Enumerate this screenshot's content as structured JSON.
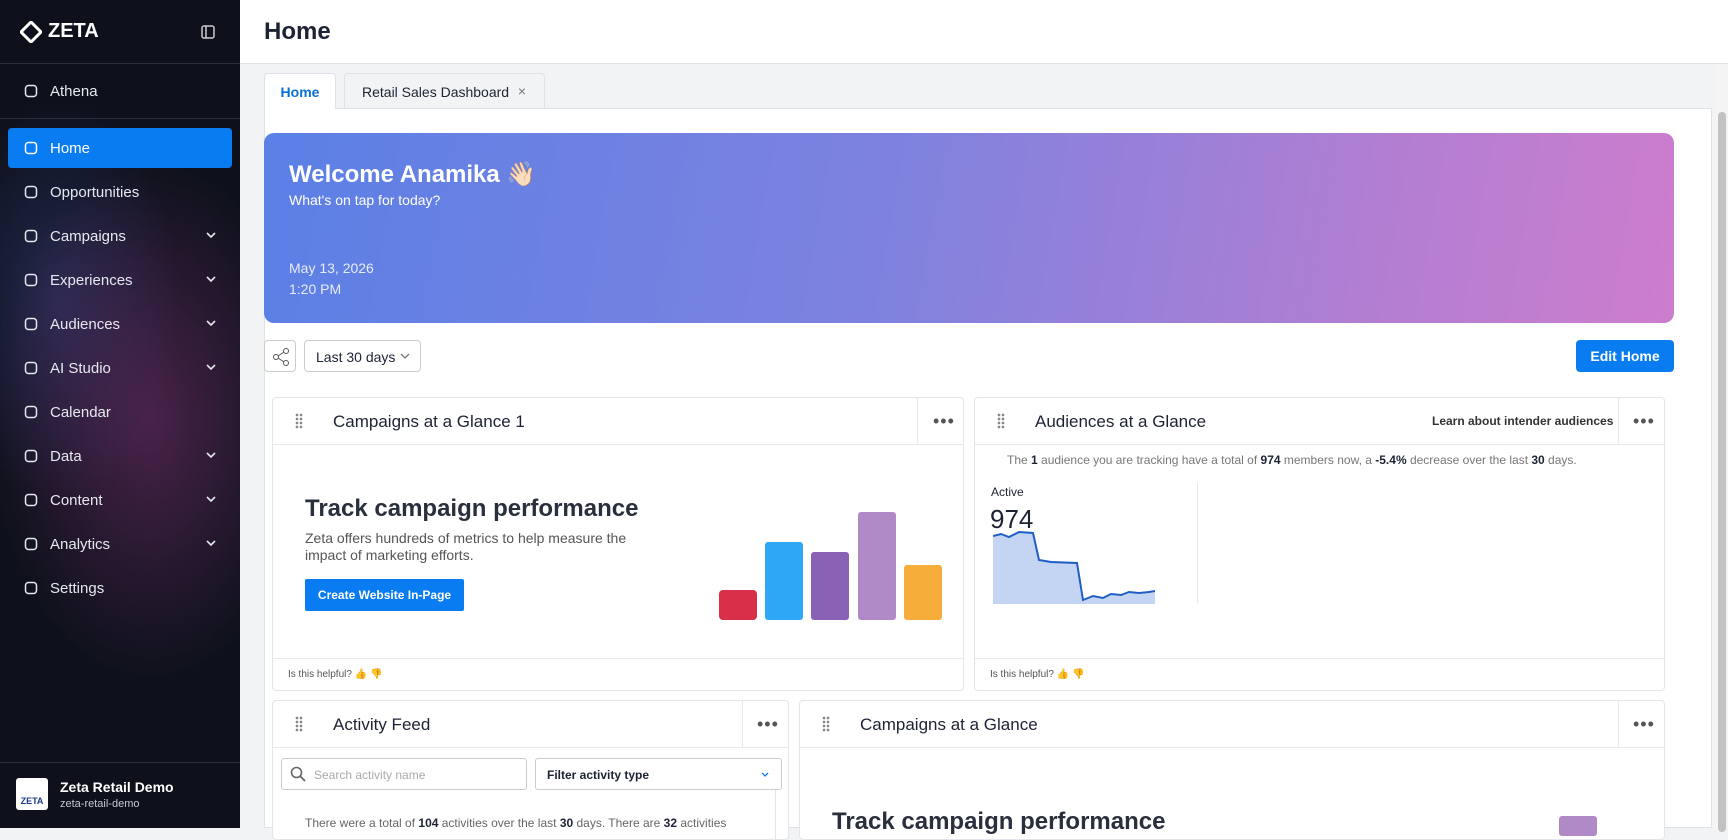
{
  "sidebar": {
    "brand": "ZETA",
    "items": [
      "Athena",
      "Home",
      "Opportunities",
      "Campaigns",
      "Experiences",
      "Audiences",
      "AI Studio",
      "Calendar",
      "Data",
      "Content",
      "Analytics",
      "Settings"
    ],
    "account": {
      "name": "Zeta Retail Demo",
      "id": "zeta-retail-demo",
      "logo": "ZETA"
    }
  },
  "header": {
    "title": "Home"
  },
  "tabs": [
    "Home",
    "Retail Sales Dashboard"
  ],
  "banner": {
    "title": "Welcome Anamika 👋🏻",
    "subtitle": "What's on tap for today?",
    "date": "May 13, 2026",
    "time": "1:20 PM"
  },
  "toolbar": {
    "range": "Last 30 days",
    "edit": "Edit Home"
  },
  "widgets": [
    {
      "title": "Campaigns at a Glance 1",
      "heading": "Track campaign performance",
      "text": "Zeta offers hundreds of metrics to help measure the impact of marketing efforts.",
      "button": "Create Website In-Page",
      "helpful": "Is this helpful?"
    },
    {
      "title": "Audiences at a Glance",
      "link": "Learn about intender audiences",
      "sentence": [
        "The ",
        "1",
        " audience you are tracking have a total of ",
        "974",
        " members now, a ",
        "-5.4%",
        " decrease over the last ",
        "30",
        " days."
      ],
      "status": "Active",
      "count": "974",
      "helpful": "Is this helpful?"
    },
    {
      "title": "Activity Feed",
      "search": "Search activity name",
      "filter": "Filter activity type",
      "summary": [
        "There were a total of ",
        "104",
        " activities over the last ",
        "30",
        " days. There are ",
        "32",
        " activities"
      ]
    },
    {
      "title": "Campaigns at a Glance",
      "heading": "Track campaign performance"
    }
  ]
}
